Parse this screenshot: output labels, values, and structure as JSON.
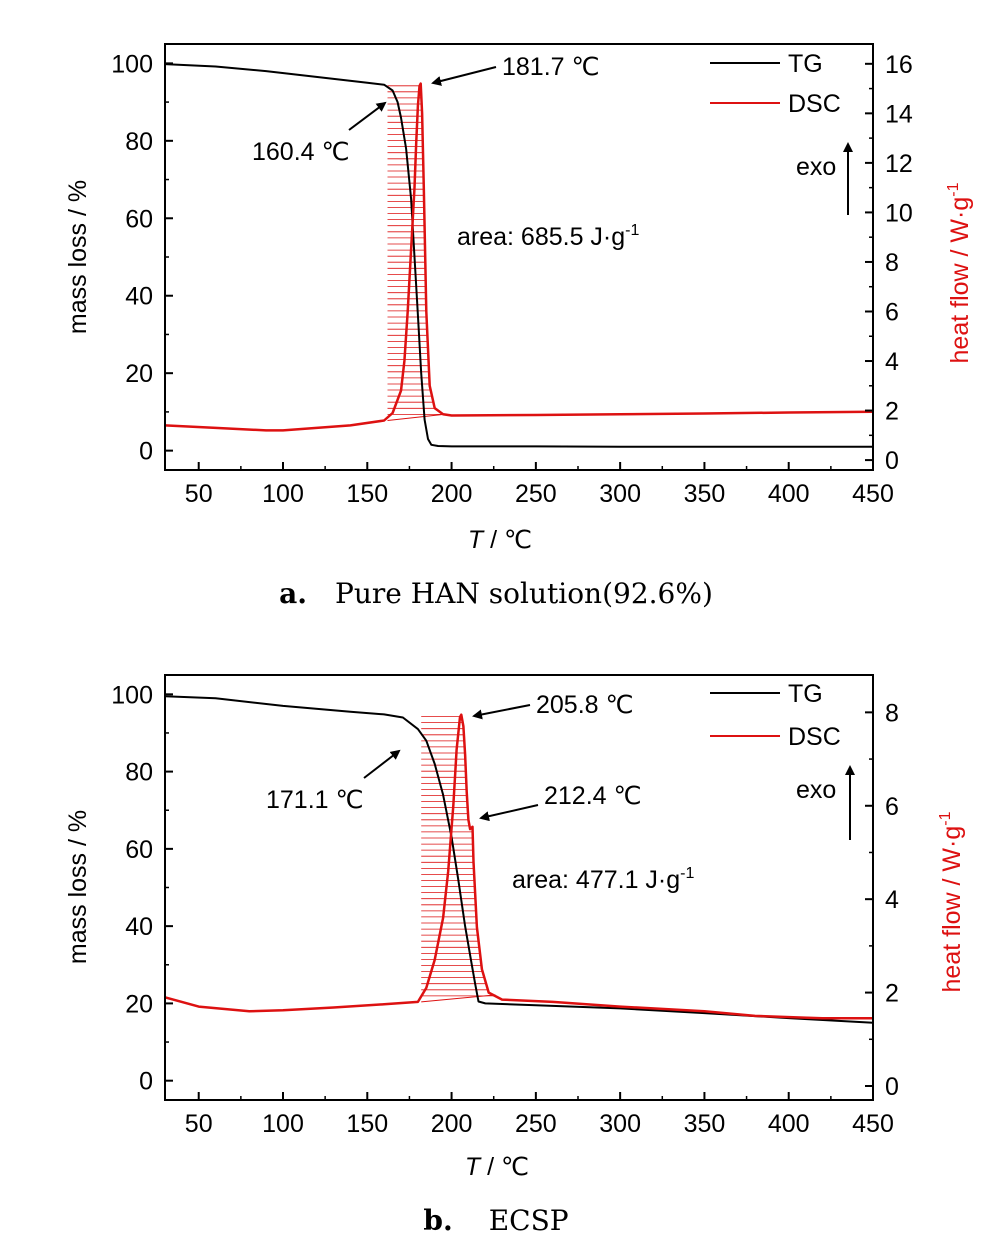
{
  "figure": {
    "panels": [
      {
        "caption_letter": "a.",
        "caption_text": "Pure HAN solution(92.6%)"
      },
      {
        "caption_letter": "b.",
        "caption_text": "ECSP"
      }
    ]
  },
  "chart_data": [
    {
      "type": "line",
      "title": "",
      "xlabel_italic": "T",
      "xlabel_unit": " / ℃",
      "ylabel": "mass loss / %",
      "y2label": "heat flow / W·g",
      "y2label_sup": "-1",
      "xlim": [
        30,
        450
      ],
      "ylim": [
        -5,
        105
      ],
      "y2lim": [
        -0.4,
        16.8
      ],
      "xticks": [
        50,
        100,
        150,
        200,
        250,
        300,
        350,
        400,
        450
      ],
      "yticks": [
        0,
        20,
        40,
        60,
        80,
        100
      ],
      "y2ticks": [
        0,
        2,
        4,
        6,
        8,
        10,
        12,
        14,
        16
      ],
      "legend": {
        "position": "top-right",
        "entries": [
          "TG",
          "DSC"
        ]
      },
      "colors": {
        "TG": "#000000",
        "DSC": "#dd1111"
      },
      "series": [
        {
          "name": "TG",
          "axis": "left",
          "x": [
            30,
            60,
            90,
            110,
            130,
            150,
            160,
            165,
            168,
            170,
            173,
            176,
            178,
            180,
            182,
            184,
            186,
            188,
            192,
            200,
            250,
            300,
            350,
            400,
            450
          ],
          "y": [
            99.8,
            99.2,
            98,
            97,
            96,
            95,
            94.5,
            93,
            90,
            86,
            78,
            65,
            50,
            35,
            20,
            8,
            3,
            1.5,
            1.2,
            1.1,
            1.1,
            1.0,
            1.0,
            1.0,
            1.0
          ]
        },
        {
          "name": "DSC",
          "axis": "right",
          "x": [
            30,
            60,
            90,
            100,
            120,
            140,
            160,
            165,
            170,
            172,
            174,
            176,
            178,
            179,
            180,
            181,
            181.7,
            182.5,
            183.5,
            185,
            187,
            190,
            195,
            200,
            250,
            300,
            350,
            400,
            450
          ],
          "y": [
            1.4,
            1.3,
            1.2,
            1.2,
            1.3,
            1.4,
            1.6,
            1.9,
            2.8,
            4.0,
            6.0,
            8.5,
            11.0,
            12.8,
            14.3,
            15.1,
            15.2,
            14.0,
            11.0,
            6.0,
            3.0,
            2.1,
            1.85,
            1.8,
            1.82,
            1.85,
            1.88,
            1.92,
            1.95
          ]
        }
      ],
      "integration": {
        "from": 162,
        "to": 196,
        "baseline_from": 1.6,
        "baseline_to": 1.85
      },
      "annotations": [
        {
          "text": "181.7 ℃",
          "x": 182,
          "y_right": 15.2
        },
        {
          "text": "160.4 ℃",
          "x": 160.4,
          "y_left": 94.5
        },
        {
          "text": "area: 685.5 J·g",
          "sup": "-1"
        },
        {
          "text": "exo"
        }
      ]
    },
    {
      "type": "line",
      "title": "",
      "xlabel_italic": "T",
      "xlabel_unit": " / ℃",
      "ylabel": "mass loss / %",
      "y2label": "heat flow / W·g",
      "y2label_sup": "-1",
      "xlim": [
        30,
        450
      ],
      "ylim": [
        -5,
        105
      ],
      "y2lim": [
        -0.3,
        8.8
      ],
      "xticks": [
        50,
        100,
        150,
        200,
        250,
        300,
        350,
        400,
        450
      ],
      "yticks": [
        0,
        20,
        40,
        60,
        80,
        100
      ],
      "y2ticks": [
        0,
        2,
        4,
        6,
        8
      ],
      "legend": {
        "position": "top-right",
        "entries": [
          "TG",
          "DSC"
        ]
      },
      "colors": {
        "TG": "#000000",
        "DSC": "#dd1111"
      },
      "series": [
        {
          "name": "TG",
          "axis": "left",
          "x": [
            30,
            60,
            100,
            140,
            160,
            171.1,
            180,
            185,
            190,
            195,
            200,
            204,
            208,
            212,
            214,
            216,
            220,
            250,
            300,
            350,
            400,
            450
          ],
          "y": [
            99.5,
            99,
            97,
            95.5,
            94.8,
            94,
            91,
            88,
            82,
            74,
            63,
            52,
            40,
            30,
            25,
            20.5,
            20,
            19.5,
            18.7,
            17.5,
            16.2,
            15
          ]
        },
        {
          "name": "DSC",
          "axis": "right",
          "x": [
            30,
            50,
            80,
            100,
            130,
            160,
            180,
            185,
            190,
            195,
            198,
            201,
            203,
            205,
            205.8,
            207,
            208,
            209,
            210,
            211,
            212.4,
            213,
            215,
            218,
            222,
            230,
            260,
            300,
            350,
            380,
            420,
            450
          ],
          "y": [
            1.9,
            1.7,
            1.6,
            1.62,
            1.68,
            1.75,
            1.8,
            2.1,
            2.7,
            3.6,
            4.6,
            6.0,
            7.2,
            7.9,
            7.95,
            7.7,
            7.1,
            6.3,
            5.7,
            5.5,
            5.55,
            4.8,
            3.4,
            2.5,
            2.0,
            1.85,
            1.8,
            1.7,
            1.6,
            1.5,
            1.45,
            1.45
          ]
        }
      ],
      "integration": {
        "from": 182,
        "to": 226,
        "baseline_from": 1.8,
        "baseline_to": 1.95
      },
      "annotations": [
        {
          "text": "205.8 ℃",
          "x": 205.8,
          "y_right": 7.95
        },
        {
          "text": "171.1 ℃",
          "x": 171.1,
          "y_left": 94
        },
        {
          "text": "212.4 ℃",
          "x": 212.4,
          "y_right": 5.55
        },
        {
          "text": "area: 477.1 J·g",
          "sup": "-1"
        },
        {
          "text": "exo"
        }
      ]
    }
  ]
}
